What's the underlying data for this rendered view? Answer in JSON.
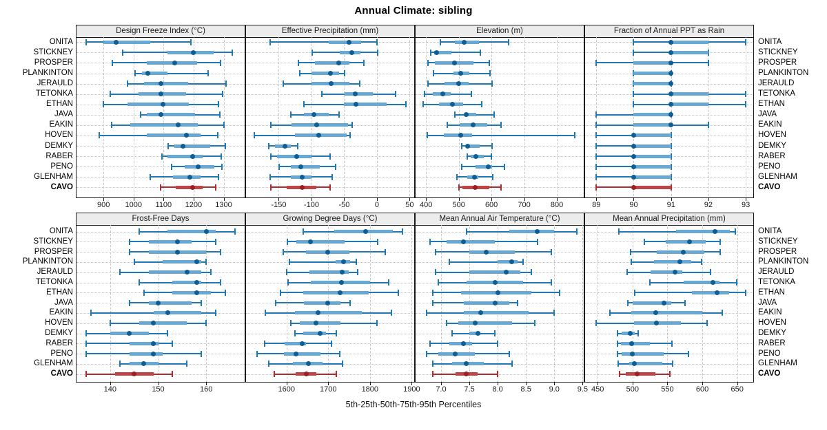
{
  "title": "Annual Climate: sibling",
  "caption": "5th-25th-50th-75th-95th Percentiles",
  "colors": {
    "normal_line": "#1f77b4",
    "normal_band": "#69a8d2",
    "normal_dot": "#0d5e94",
    "highlight_line": "#b32a2e",
    "highlight_band": "#bb4547",
    "highlight_dot": "#9c1f24",
    "grid": "#c3c3c3",
    "panel_border": "#1a1a1a",
    "header_bg": "#ececec"
  },
  "chart_data": {
    "type": "dot-whisker-percentiles",
    "percentiles": [
      5,
      25,
      50,
      75,
      95
    ],
    "stations": [
      "ONITA",
      "STICKNEY",
      "PROSPER",
      "PLANKINTON",
      "JERAULD",
      "TETONKA",
      "ETHAN",
      "JAVA",
      "EAKIN",
      "HOVEN",
      "DEMKY",
      "RABER",
      "PENO",
      "GLENHAM",
      "CAVO"
    ],
    "highlight_station": "CAVO",
    "panels": [
      {
        "title": "Design Freeze Index (°C)",
        "domain": [
          810,
          1370
        ],
        "ticks": [
          900,
          1000,
          1100,
          1200,
          1300
        ],
        "tick_labels": [
          "900",
          "1000",
          "1100",
          "1200",
          "1300"
        ],
        "values": {
          "ONITA": [
            843,
            900,
            942,
            1055,
            1192
          ],
          "STICKNEY": [
            964,
            1114,
            1199,
            1266,
            1328
          ],
          "PROSPER": [
            930,
            1043,
            1138,
            1212,
            1290
          ],
          "PLANKINTON": [
            1005,
            1028,
            1048,
            1114,
            1249
          ],
          "JERAULD": [
            980,
            1035,
            1090,
            1181,
            1307
          ],
          "TETONKA": [
            922,
            1016,
            1091,
            1176,
            1296
          ],
          "ETHAN": [
            899,
            980,
            1097,
            1184,
            1283
          ],
          "JAVA": [
            1023,
            1043,
            1091,
            1204,
            1287
          ],
          "EAKIN": [
            926,
            990,
            1148,
            1215,
            1302
          ],
          "HOVEN": [
            885,
            1043,
            1176,
            1223,
            1281
          ],
          "DEMKY": [
            1115,
            1135,
            1165,
            1255,
            1305
          ],
          "RABER": [
            1095,
            1114,
            1197,
            1231,
            1291
          ],
          "PENO": [
            1127,
            1170,
            1214,
            1268,
            1294
          ],
          "GLENHAM": [
            1055,
            1131,
            1187,
            1223,
            1283
          ],
          "CAVO": [
            1091,
            1140,
            1197,
            1229,
            1274
          ]
        }
      },
      {
        "title": "Effective Precipitation (mm)",
        "domain": [
          -200,
          57
        ],
        "ticks": [
          -150,
          -100,
          -50,
          0,
          50
        ],
        "tick_labels": [
          "-150",
          "-100",
          "-50",
          "0",
          "50"
        ],
        "values": {
          "ONITA": [
            -163,
            -74,
            -43,
            -24,
            0
          ],
          "STICKNEY": [
            -99,
            -57,
            -38,
            -25,
            1
          ],
          "PROSPER": [
            -120,
            -95,
            -58,
            -42,
            -20
          ],
          "PLANKINTON": [
            -118,
            -100,
            -71,
            -58,
            -49
          ],
          "JERAULD": [
            -143,
            -100,
            -70,
            -42,
            -26
          ],
          "TETONKA": [
            -84,
            -49,
            -33,
            -6,
            29
          ],
          "ETHAN": [
            -112,
            -50,
            -32,
            15,
            44
          ],
          "JAVA": [
            -132,
            -112,
            -96,
            -74,
            -58
          ],
          "EAKIN": [
            -162,
            -130,
            -92,
            -44,
            -38
          ],
          "HOVEN": [
            -187,
            -125,
            -89,
            -46,
            -41
          ],
          "DEMKY": [
            -165,
            -156,
            -140,
            -132,
            -121
          ],
          "RABER": [
            -162,
            -153,
            -123,
            -100,
            -72
          ],
          "PENO": [
            -149,
            -132,
            -116,
            -87,
            -63
          ],
          "GLENHAM": [
            -163,
            -132,
            -114,
            -100,
            -68
          ],
          "CAVO": [
            -162,
            -138,
            -114,
            -93,
            -72
          ]
        }
      },
      {
        "title": "Elevation (m)",
        "domain": [
          368,
          882
        ],
        "ticks": [
          400,
          500,
          600,
          700,
          800
        ],
        "tick_labels": [
          "400",
          "500",
          "600",
          "700",
          "800"
        ],
        "values": {
          "ONITA": [
            444,
            488,
            517,
            562,
            653
          ],
          "STICKNEY": [
            415,
            425,
            432,
            478,
            565
          ],
          "PROSPER": [
            405,
            428,
            488,
            546,
            594
          ],
          "PLANKINTON": [
            423,
            484,
            507,
            532,
            595
          ],
          "JERAULD": [
            405,
            456,
            500,
            530,
            602
          ],
          "TETONKA": [
            396,
            421,
            451,
            475,
            539
          ],
          "ETHAN": [
            391,
            439,
            480,
            513,
            570
          ],
          "JAVA": [
            489,
            518,
            523,
            553,
            608
          ],
          "EAKIN": [
            465,
            502,
            544,
            587,
            629
          ],
          "HOVEN": [
            403,
            454,
            506,
            541,
            854
          ],
          "DEMKY": [
            510,
            522,
            528,
            564,
            602
          ],
          "RABER": [
            525,
            536,
            553,
            576,
            599
          ],
          "PENO": [
            509,
            551,
            591,
            601,
            639
          ],
          "GLENHAM": [
            495,
            525,
            549,
            560,
            604
          ],
          "CAVO": [
            500,
            512,
            550,
            594,
            630
          ]
        }
      },
      {
        "title": "Fraction of Annual PPT as Rain",
        "domain": [
          88.7,
          93.2
        ],
        "ticks": [
          89,
          90,
          91,
          92,
          93
        ],
        "tick_labels": [
          "89",
          "90",
          "91",
          "92",
          "93"
        ],
        "values": {
          "ONITA": [
            90,
            91,
            91,
            92,
            93
          ],
          "STICKNEY": [
            90,
            91,
            91,
            92,
            92
          ],
          "PROSPER": [
            89,
            90,
            91,
            91,
            92
          ],
          "PLANKINTON": [
            90,
            90,
            91,
            91,
            91
          ],
          "JERAULD": [
            90,
            90,
            91,
            91,
            91
          ],
          "TETONKA": [
            90,
            91,
            91,
            92,
            93
          ],
          "ETHAN": [
            90,
            91,
            91,
            92,
            93
          ],
          "JAVA": [
            89,
            90,
            91,
            91,
            91
          ],
          "EAKIN": [
            89,
            90,
            91,
            91,
            92
          ],
          "HOVEN": [
            89,
            90,
            90,
            91,
            91
          ],
          "DEMKY": [
            89,
            90,
            90,
            91,
            91
          ],
          "RABER": [
            89,
            90,
            90,
            91,
            91
          ],
          "PENO": [
            89,
            90,
            90,
            91,
            91
          ],
          "GLENHAM": [
            89,
            90,
            90,
            91,
            91
          ],
          "CAVO": [
            89,
            90,
            90,
            91,
            91
          ]
        }
      },
      {
        "title": "Frost-Free Days",
        "domain": [
          133,
          168
        ],
        "ticks": [
          140,
          150,
          160
        ],
        "tick_labels": [
          "140",
          "150",
          "160"
        ],
        "values": {
          "ONITA": [
            146,
            152,
            160,
            162,
            166
          ],
          "STICKNEY": [
            144,
            148,
            154,
            157,
            162
          ],
          "PROSPER": [
            144,
            148,
            154,
            160,
            163
          ],
          "PLANKINTON": [
            145,
            151,
            158,
            159,
            160
          ],
          "JERAULD": [
            142,
            148,
            156,
            159,
            161
          ],
          "TETONKA": [
            146,
            153,
            158,
            159,
            163
          ],
          "ETHAN": [
            147,
            153,
            158,
            161,
            164
          ],
          "JAVA": [
            144,
            148,
            150,
            157,
            159
          ],
          "EAKIN": [
            136,
            149,
            152,
            159,
            162
          ],
          "HOVEN": [
            140,
            146,
            149,
            156,
            160
          ],
          "DEMKY": [
            135,
            140,
            144,
            148,
            152
          ],
          "RABER": [
            135,
            144,
            149,
            150,
            153
          ],
          "PENO": [
            135,
            144,
            149,
            151,
            159
          ],
          "GLENHAM": [
            142,
            144,
            147,
            150,
            156
          ],
          "CAVO": [
            135,
            141,
            145,
            149,
            153
          ]
        }
      },
      {
        "title": "Growing Degree Days (°C)",
        "domain": [
          1503,
          1906
        ],
        "ticks": [
          1600,
          1700,
          1800,
          1900
        ],
        "tick_labels": [
          "1600",
          "1700",
          "1800",
          "1900"
        ],
        "values": {
          "ONITA": [
            1640,
            1715,
            1790,
            1855,
            1878
          ],
          "STICKNEY": [
            1602,
            1624,
            1658,
            1739,
            1818
          ],
          "PROSPER": [
            1592,
            1646,
            1698,
            1750,
            1836
          ],
          "PLANKINTON": [
            1607,
            1717,
            1736,
            1753,
            1767
          ],
          "JERAULD": [
            1600,
            1655,
            1734,
            1749,
            1770
          ],
          "TETONKA": [
            1604,
            1659,
            1732,
            1800,
            1845
          ],
          "ETHAN": [
            1585,
            1640,
            1728,
            1797,
            1868
          ],
          "JAVA": [
            1574,
            1641,
            1698,
            1730,
            1753
          ],
          "EAKIN": [
            1549,
            1620,
            1676,
            1780,
            1852
          ],
          "HOVEN": [
            1610,
            1632,
            1670,
            1730,
            1816
          ],
          "DEMKY": [
            1620,
            1640,
            1681,
            1694,
            1720
          ],
          "RABER": [
            1547,
            1596,
            1637,
            1647,
            1708
          ],
          "PENO": [
            1530,
            1594,
            1622,
            1681,
            1727
          ],
          "GLENHAM": [
            1558,
            1616,
            1652,
            1687,
            1735
          ],
          "CAVO": [
            1571,
            1622,
            1648,
            1672,
            1720
          ]
        }
      },
      {
        "title": "Mean Annual Air Temperature (°C)",
        "domain": [
          6.55,
          9.52
        ],
        "ticks": [
          7.0,
          7.5,
          8.0,
          8.5,
          9.0,
          9.5
        ],
        "tick_labels": [
          "7.0",
          "7.5",
          "8.0",
          "8.5",
          "9.0",
          "9.5"
        ],
        "values": {
          "ONITA": [
            7.45,
            8.2,
            8.7,
            9.0,
            9.4
          ],
          "STICKNEY": [
            6.8,
            7.1,
            7.4,
            7.95,
            8.7
          ],
          "PROSPER": [
            6.9,
            7.5,
            7.8,
            8.3,
            8.95
          ],
          "PLANKINTON": [
            7.15,
            8.0,
            8.25,
            8.35,
            8.45
          ],
          "JERAULD": [
            6.9,
            7.5,
            8.15,
            8.4,
            8.6
          ],
          "TETONKA": [
            6.95,
            7.45,
            7.95,
            8.45,
            8.95
          ],
          "ETHAN": [
            6.85,
            7.35,
            8.0,
            8.6,
            9.1
          ],
          "JAVA": [
            6.85,
            7.4,
            7.95,
            8.2,
            8.35
          ],
          "EAKIN": [
            6.75,
            7.4,
            7.7,
            8.55,
            9.0
          ],
          "HOVEN": [
            7.1,
            7.3,
            7.6,
            8.25,
            8.65
          ],
          "DEMKY": [
            7.2,
            7.5,
            7.65,
            7.7,
            7.95
          ],
          "RABER": [
            6.8,
            7.15,
            7.4,
            7.55,
            8.0
          ],
          "PENO": [
            6.75,
            6.95,
            7.25,
            7.6,
            8.2
          ],
          "GLENHAM": [
            6.85,
            7.2,
            7.45,
            7.75,
            8.25
          ],
          "CAVO": [
            6.85,
            7.25,
            7.45,
            7.65,
            8.0
          ]
        }
      },
      {
        "title": "Mean Annual Precipitation (mm)",
        "domain": [
          432,
          673
        ],
        "ticks": [
          450,
          500,
          550,
          600,
          650
        ],
        "tick_labels": [
          "450",
          "500",
          "550",
          "600",
          "650"
        ],
        "values": {
          "ONITA": [
            480,
            562,
            618,
            639,
            647
          ],
          "STICKNEY": [
            517,
            548,
            582,
            605,
            626
          ],
          "PROSPER": [
            497,
            535,
            573,
            603,
            626
          ],
          "PLANKINTON": [
            498,
            531,
            568,
            584,
            599
          ],
          "JERAULD": [
            492,
            526,
            561,
            571,
            612
          ],
          "TETONKA": [
            525,
            573,
            615,
            625,
            649
          ],
          "ETHAN": [
            503,
            585,
            621,
            638,
            662
          ],
          "JAVA": [
            493,
            500,
            545,
            555,
            575
          ],
          "EAKIN": [
            468,
            498,
            533,
            600,
            629
          ],
          "HOVEN": [
            448,
            502,
            534,
            569,
            607
          ],
          "DEMKY": [
            478,
            484,
            497,
            503,
            508
          ],
          "RABER": [
            478,
            483,
            499,
            525,
            556
          ],
          "PENO": [
            478,
            484,
            500,
            545,
            580
          ],
          "GLENHAM": [
            479,
            495,
            503,
            543,
            557
          ],
          "CAVO": [
            481,
            490,
            507,
            533,
            553
          ]
        }
      }
    ]
  }
}
